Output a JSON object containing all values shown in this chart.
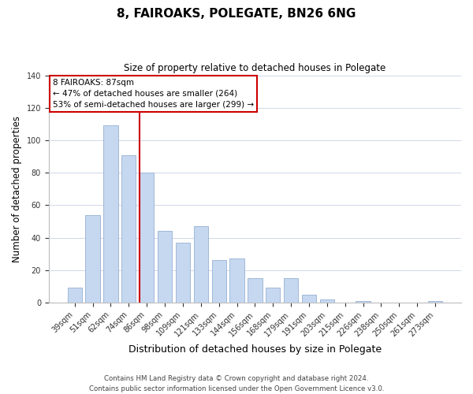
{
  "title": "8, FAIROAKS, POLEGATE, BN26 6NG",
  "subtitle": "Size of property relative to detached houses in Polegate",
  "xlabel": "Distribution of detached houses by size in Polegate",
  "ylabel": "Number of detached properties",
  "bar_color": "#c5d8f0",
  "bar_edge_color": "#a0b8d8",
  "categories": [
    "39sqm",
    "51sqm",
    "62sqm",
    "74sqm",
    "86sqm",
    "98sqm",
    "109sqm",
    "121sqm",
    "133sqm",
    "144sqm",
    "156sqm",
    "168sqm",
    "179sqm",
    "191sqm",
    "203sqm",
    "215sqm",
    "226sqm",
    "238sqm",
    "250sqm",
    "261sqm",
    "273sqm"
  ],
  "values": [
    9,
    54,
    109,
    91,
    80,
    44,
    37,
    47,
    26,
    27,
    15,
    9,
    15,
    5,
    2,
    0,
    1,
    0,
    0,
    0,
    1
  ],
  "highlight_index": 4,
  "highlight_line_color": "#cc0000",
  "ylim": [
    0,
    140
  ],
  "yticks": [
    0,
    20,
    40,
    60,
    80,
    100,
    120,
    140
  ],
  "annotation_title": "8 FAIROAKS: 87sqm",
  "annotation_line1": "← 47% of detached houses are smaller (264)",
  "annotation_line2": "53% of semi-detached houses are larger (299) →",
  "annotation_box_color": "#ffffff",
  "annotation_box_edge": "#cc0000",
  "footer1": "Contains HM Land Registry data © Crown copyright and database right 2024.",
  "footer2": "Contains public sector information licensed under the Open Government Licence v3.0.",
  "background_color": "#ffffff",
  "grid_color": "#d0d8e8"
}
